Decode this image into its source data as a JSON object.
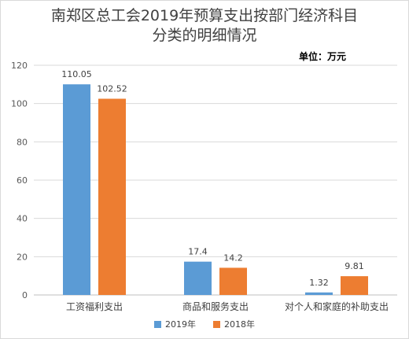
{
  "chart_data": {
    "type": "bar",
    "title": "南郑区总工会2019年预算支出按部门经济科目分类的明细情况",
    "title_lines": [
      "南郑区总工会2019年预算支出按部门经济科目",
      "分类的明细情况"
    ],
    "unit_note": "单位：万元",
    "categories": [
      "工资福利支出",
      "商品和服务支出",
      "对个人和家庭的补助支出"
    ],
    "series": [
      {
        "name": "2019年",
        "color": "#5b9bd5",
        "values": [
          110.05,
          17.4,
          1.32
        ],
        "labels": [
          "110.05",
          "17.4",
          "1.32"
        ]
      },
      {
        "name": "2018年",
        "color": "#ed7d31",
        "values": [
          102.52,
          14.2,
          9.81
        ],
        "labels": [
          "102.52",
          "14.2",
          "9.81"
        ]
      }
    ],
    "yticks": [
      "0",
      "20",
      "40",
      "60",
      "80",
      "100",
      "120"
    ],
    "ylim": [
      0,
      120
    ],
    "grid": true,
    "legend_position": "bottom"
  }
}
